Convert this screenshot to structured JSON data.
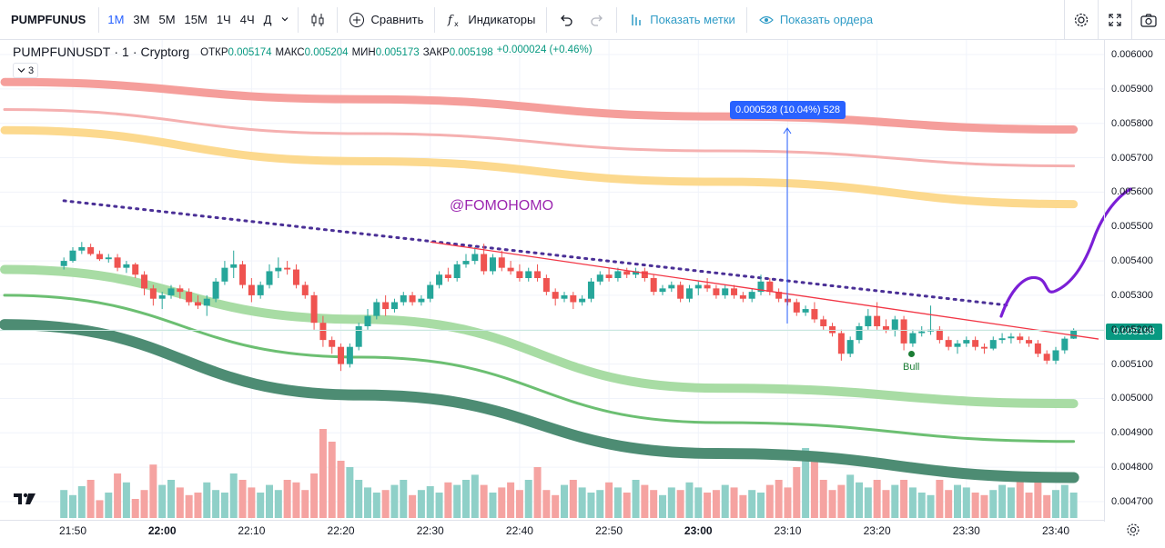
{
  "toolbar": {
    "symbol": "PUMPFUNUS",
    "intervals": [
      "1М",
      "3М",
      "5М",
      "15М",
      "1Ч",
      "4Ч",
      "Д"
    ],
    "active_interval": "1М",
    "compare_label": "Сравнить",
    "indicators_label": "Индикаторы",
    "show_marks_label": "Показать метки",
    "show_orders_label": "Показать ордера",
    "icons": [
      "chevron-down-icon",
      "candles-icon",
      "plus-circle-icon",
      "fx-icon",
      "undo-icon",
      "redo-icon",
      "bars-icon",
      "eye-icon",
      "gear-icon",
      "fullscreen-icon",
      "camera-icon"
    ]
  },
  "legend": {
    "symbol": "PUMPFUNUSDT",
    "interval": "1",
    "exchange": "Cryptorg",
    "open_label": "ОТКР",
    "open": "0.005174",
    "high_label": "МАКС",
    "high": "0.005204",
    "low_label": "МИН",
    "low": "0.005173",
    "close_label": "ЗАКР",
    "close": "0.005198",
    "change": "+0.000024 (+0.46%)",
    "indicators_count": "3"
  },
  "annotations": {
    "watermark": "@FOMOHOMO",
    "measure": "0.000528 (10.04%) 528",
    "bull_label": "Bull",
    "current_price": "0.005198"
  },
  "colors": {
    "up": "#26a69a",
    "down": "#ef5350",
    "vol_up": "#8fd0c8",
    "vol_down": "#f5a3a1",
    "trendline": "#f23645",
    "dotted": "#4a2f96",
    "drawing": "#7b1fd6",
    "measure": "#2962ff",
    "badge": "#089981"
  },
  "chart_data": {
    "type": "candlestick",
    "y_axis": {
      "ticks": [
        "0.006000",
        "0.005900",
        "0.005800",
        "0.005700",
        "0.005600",
        "0.005500",
        "0.005400",
        "0.005300",
        "0.005200",
        "0.005100",
        "0.005000",
        "0.004900",
        "0.004800",
        "0.004700"
      ],
      "range": [
        0.00468,
        0.00603
      ]
    },
    "x_axis": {
      "ticks": [
        "21:50",
        "22:00",
        "22:10",
        "22:20",
        "22:30",
        "22:40",
        "22:50",
        "23:00",
        "23:10",
        "23:20",
        "23:30",
        "23:40"
      ],
      "bold": [
        "22:00",
        "23:00"
      ]
    },
    "start_time": "21:49",
    "minutes_per_bar": 1,
    "candles": [
      [
        0.005385,
        0.00541,
        0.005375,
        0.0054
      ],
      [
        0.0054,
        0.00544,
        0.005395,
        0.00543
      ],
      [
        0.00543,
        0.005455,
        0.00542,
        0.00544
      ],
      [
        0.00544,
        0.00545,
        0.005415,
        0.00542
      ],
      [
        0.00542,
        0.00543,
        0.0054,
        0.005405
      ],
      [
        0.005405,
        0.00542,
        0.005395,
        0.00541
      ],
      [
        0.00541,
        0.00542,
        0.00537,
        0.00538
      ],
      [
        0.00538,
        0.0054,
        0.005365,
        0.00539
      ],
      [
        0.00539,
        0.005395,
        0.00535,
        0.00536
      ],
      [
        0.00536,
        0.00537,
        0.0053,
        0.00532
      ],
      [
        0.00532,
        0.00533,
        0.00527,
        0.00529
      ],
      [
        0.00529,
        0.00531,
        0.00526,
        0.0053
      ],
      [
        0.0053,
        0.00533,
        0.00529,
        0.00532
      ],
      [
        0.00532,
        0.00533,
        0.00529,
        0.00531
      ],
      [
        0.00531,
        0.00532,
        0.00527,
        0.00528
      ],
      [
        0.00528,
        0.0053,
        0.00526,
        0.00527
      ],
      [
        0.00527,
        0.0053,
        0.00524,
        0.00529
      ],
      [
        0.00529,
        0.00535,
        0.00528,
        0.00534
      ],
      [
        0.00534,
        0.0054,
        0.00533,
        0.00538
      ],
      [
        0.00538,
        0.00543,
        0.00535,
        0.00539
      ],
      [
        0.00539,
        0.0054,
        0.00532,
        0.00533
      ],
      [
        0.00533,
        0.00535,
        0.00528,
        0.0053
      ],
      [
        0.0053,
        0.00534,
        0.00529,
        0.00533
      ],
      [
        0.00533,
        0.00539,
        0.00532,
        0.00537
      ],
      [
        0.00537,
        0.00541,
        0.00535,
        0.00538
      ],
      [
        0.00538,
        0.0054,
        0.00536,
        0.005375
      ],
      [
        0.005375,
        0.00539,
        0.00532,
        0.00533
      ],
      [
        0.00533,
        0.00534,
        0.00529,
        0.0053
      ],
      [
        0.0053,
        0.00531,
        0.0052,
        0.00522
      ],
      [
        0.00522,
        0.00524,
        0.00515,
        0.00517
      ],
      [
        0.00517,
        0.00518,
        0.00513,
        0.00515
      ],
      [
        0.00515,
        0.00516,
        0.00508,
        0.0051
      ],
      [
        0.0051,
        0.00516,
        0.00509,
        0.00515
      ],
      [
        0.00515,
        0.00522,
        0.00514,
        0.00521
      ],
      [
        0.00521,
        0.00526,
        0.0052,
        0.00524
      ],
      [
        0.00524,
        0.00529,
        0.00523,
        0.00528
      ],
      [
        0.00528,
        0.0053,
        0.00524,
        0.00526
      ],
      [
        0.00526,
        0.00529,
        0.00525,
        0.00528
      ],
      [
        0.00528,
        0.00531,
        0.00527,
        0.0053
      ],
      [
        0.0053,
        0.00531,
        0.00527,
        0.00528
      ],
      [
        0.00528,
        0.0053,
        0.00527,
        0.00529
      ],
      [
        0.00529,
        0.00534,
        0.00528,
        0.00533
      ],
      [
        0.00533,
        0.00537,
        0.00532,
        0.00536
      ],
      [
        0.00536,
        0.00538,
        0.00534,
        0.00535
      ],
      [
        0.00535,
        0.0054,
        0.00534,
        0.00539
      ],
      [
        0.00539,
        0.00542,
        0.00538,
        0.0054
      ],
      [
        0.0054,
        0.00544,
        0.00539,
        0.00542
      ],
      [
        0.00542,
        0.00545,
        0.00536,
        0.00537
      ],
      [
        0.00537,
        0.00542,
        0.00536,
        0.00541
      ],
      [
        0.00541,
        0.00543,
        0.00537,
        0.00538
      ],
      [
        0.00538,
        0.0054,
        0.00536,
        0.00537
      ],
      [
        0.00537,
        0.00539,
        0.00534,
        0.00535
      ],
      [
        0.00535,
        0.00538,
        0.00534,
        0.00537
      ],
      [
        0.00537,
        0.00539,
        0.00534,
        0.00535
      ],
      [
        0.00535,
        0.00536,
        0.0053,
        0.00531
      ],
      [
        0.00531,
        0.00532,
        0.00527,
        0.00529
      ],
      [
        0.00529,
        0.00531,
        0.00528,
        0.0053
      ],
      [
        0.0053,
        0.00531,
        0.00526,
        0.00528
      ],
      [
        0.00528,
        0.0053,
        0.00527,
        0.00529
      ],
      [
        0.00529,
        0.00535,
        0.00528,
        0.00534
      ],
      [
        0.00534,
        0.00537,
        0.00533,
        0.00536
      ],
      [
        0.00536,
        0.00538,
        0.00534,
        0.00535
      ],
      [
        0.00535,
        0.00538,
        0.00534,
        0.00537
      ],
      [
        0.00537,
        0.00538,
        0.00535,
        0.00536
      ],
      [
        0.00536,
        0.00538,
        0.00535,
        0.00537
      ],
      [
        0.00537,
        0.00538,
        0.00534,
        0.00535
      ],
      [
        0.00535,
        0.00536,
        0.0053,
        0.00531
      ],
      [
        0.00531,
        0.00533,
        0.0053,
        0.00532
      ],
      [
        0.00532,
        0.00534,
        0.00531,
        0.00533
      ],
      [
        0.00533,
        0.00534,
        0.00528,
        0.00529
      ],
      [
        0.00529,
        0.00533,
        0.00528,
        0.00532
      ],
      [
        0.00532,
        0.00534,
        0.0053,
        0.00533
      ],
      [
        0.00533,
        0.00535,
        0.00531,
        0.00532
      ],
      [
        0.00532,
        0.00533,
        0.00529,
        0.0053
      ],
      [
        0.0053,
        0.00533,
        0.00529,
        0.00532
      ],
      [
        0.00532,
        0.00533,
        0.00529,
        0.0053
      ],
      [
        0.0053,
        0.00531,
        0.00528,
        0.00529
      ],
      [
        0.00529,
        0.00532,
        0.00528,
        0.00531
      ],
      [
        0.00531,
        0.00536,
        0.0053,
        0.00534
      ],
      [
        0.00534,
        0.00535,
        0.0053,
        0.00531
      ],
      [
        0.00531,
        0.00532,
        0.00528,
        0.00529
      ],
      [
        0.00529,
        0.0053,
        0.00527,
        0.00528
      ],
      [
        0.00528,
        0.00529,
        0.00524,
        0.00525
      ],
      [
        0.00525,
        0.00527,
        0.00524,
        0.00526
      ],
      [
        0.00526,
        0.00528,
        0.00522,
        0.00523
      ],
      [
        0.00523,
        0.00524,
        0.0052,
        0.00521
      ],
      [
        0.00521,
        0.00522,
        0.00518,
        0.00519
      ],
      [
        0.00519,
        0.0052,
        0.00511,
        0.00513
      ],
      [
        0.00513,
        0.00518,
        0.00512,
        0.00517
      ],
      [
        0.00517,
        0.00522,
        0.00516,
        0.00521
      ],
      [
        0.00521,
        0.00526,
        0.0052,
        0.00524
      ],
      [
        0.00524,
        0.00528,
        0.0052,
        0.00521
      ],
      [
        0.00521,
        0.00523,
        0.00519,
        0.0052
      ],
      [
        0.0052,
        0.00524,
        0.00518,
        0.00523
      ],
      [
        0.00523,
        0.00524,
        0.00514,
        0.00516
      ],
      [
        0.00516,
        0.0052,
        0.00515,
        0.00519
      ],
      [
        0.00519,
        0.00521,
        0.00518,
        0.005195
      ],
      [
        0.005195,
        0.00527,
        0.005185,
        0.0052
      ],
      [
        0.0052,
        0.00521,
        0.00516,
        0.00517
      ],
      [
        0.00517,
        0.00518,
        0.00514,
        0.00515
      ],
      [
        0.00515,
        0.00517,
        0.00513,
        0.00516
      ],
      [
        0.00516,
        0.00518,
        0.00515,
        0.00517
      ],
      [
        0.00517,
        0.00518,
        0.00514,
        0.00515
      ],
      [
        0.00515,
        0.00516,
        0.00513,
        0.005145
      ],
      [
        0.005145,
        0.00518,
        0.00514,
        0.00517
      ],
      [
        0.00517,
        0.00519,
        0.00516,
        0.005175
      ],
      [
        0.005175,
        0.00519,
        0.00516,
        0.00518
      ],
      [
        0.00518,
        0.00519,
        0.00516,
        0.00517
      ],
      [
        0.00517,
        0.00518,
        0.00515,
        0.00516
      ],
      [
        0.00516,
        0.00517,
        0.00512,
        0.00513
      ],
      [
        0.00513,
        0.00514,
        0.0051,
        0.00511
      ],
      [
        0.00511,
        0.00515,
        0.0051,
        0.00514
      ],
      [
        0.00514,
        0.00518,
        0.00513,
        0.005174
      ],
      [
        0.005174,
        0.005204,
        0.005173,
        0.005198
      ]
    ],
    "volumes": [
      22,
      18,
      25,
      30,
      14,
      20,
      35,
      28,
      15,
      22,
      42,
      26,
      30,
      24,
      18,
      20,
      28,
      22,
      20,
      35,
      30,
      24,
      20,
      26,
      22,
      30,
      28,
      22,
      35,
      70,
      60,
      45,
      40,
      30,
      24,
      20,
      22,
      26,
      30,
      18,
      22,
      25,
      20,
      28,
      26,
      30,
      34,
      26,
      20,
      24,
      28,
      22,
      30,
      40,
      22,
      18,
      26,
      30,
      24,
      20,
      22,
      28,
      24,
      20,
      30,
      26,
      22,
      18,
      24,
      22,
      28,
      24,
      20,
      22,
      26,
      24,
      18,
      22,
      20,
      26,
      30,
      24,
      40,
      55,
      48,
      30,
      22,
      26,
      34,
      28,
      24,
      30,
      22,
      26,
      30,
      24,
      20,
      18,
      30,
      22,
      26,
      24,
      20,
      18,
      22,
      26,
      24,
      30,
      20,
      28,
      18,
      22,
      26,
      20,
      24
    ],
    "vol_scale_max": 100,
    "overlays": [
      {
        "values": [
          0.00592,
          0.00587,
          0.00582,
          0.005782
        ],
        "color": "#f59e9b",
        "width": 9
      },
      {
        "values": [
          0.00584,
          0.00577,
          0.00572,
          0.005676
        ],
        "color": "#f5b0b0",
        "width": 3
      },
      {
        "values": [
          0.00578,
          0.00569,
          0.00563,
          0.005565
        ],
        "color": "#fcd98e",
        "width": 9
      },
      {
        "values": [
          0.005375,
          0.00523,
          0.00503,
          0.004985
        ],
        "color": "#a8dca4",
        "width": 10
      },
      {
        "values": [
          0.0053,
          0.00512,
          0.00493,
          0.004875
        ],
        "color": "#6cbf72",
        "width": 3
      },
      {
        "values": [
          0.005215,
          0.00501,
          0.00484,
          0.00477
        ],
        "color": "#4d8c73",
        "width": 12
      }
    ],
    "trendline": {
      "from": {
        "time": "22:30",
        "price": 0.005455
      },
      "to": {
        "time": "23:45",
        "price": 0.005172
      }
    },
    "dotted_line": {
      "from": {
        "time": "21:49",
        "price": 0.005575
      },
      "to": {
        "time": "23:35",
        "price": 0.00527
      }
    }
  }
}
